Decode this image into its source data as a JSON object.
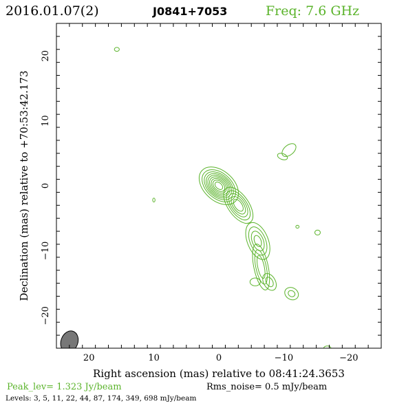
{
  "header": {
    "date": "2016.01.07(2)",
    "source": "J0841+7053",
    "freq": "Freq: 7.6 GHz"
  },
  "chart_data": {
    "type": "contour",
    "xlabel": "Right ascension (mas) relative to 08:41:24.3653",
    "ylabel": "Declination (mas) relative to +70:53:42.173",
    "xlim": [
      25,
      -25
    ],
    "ylim": [
      -25,
      25
    ],
    "xticks": [
      20,
      10,
      0,
      -10,
      -20
    ],
    "xtick_labels": [
      "20",
      "10",
      "0",
      "−10",
      "−20"
    ],
    "yticks": [
      20,
      10,
      0,
      -10,
      -20
    ],
    "ytick_labels": [
      "20",
      "10",
      "0",
      "−10",
      "−20"
    ],
    "contour_color": "#5ab32a",
    "beam": {
      "x": 23,
      "y": -24,
      "bmaj": 1.7,
      "bmin": 1.3,
      "pa_deg": 20
    },
    "components": [
      {
        "name": "core",
        "x": 0.0,
        "y": 0.0,
        "rings": [
          [
            3.5,
            2.3
          ],
          [
            3.0,
            1.95
          ],
          [
            2.6,
            1.7
          ],
          [
            2.25,
            1.5
          ],
          [
            1.95,
            1.3
          ],
          [
            1.65,
            1.1
          ],
          [
            1.35,
            0.9
          ],
          [
            1.05,
            0.7
          ],
          [
            0.7,
            0.45
          ]
        ],
        "angle_deg": 42
      },
      {
        "name": "inner-jet",
        "x": -3.0,
        "y": -3.0,
        "rings": [
          [
            3.2,
            1.6
          ],
          [
            2.6,
            1.3
          ],
          [
            2.05,
            1.05
          ],
          [
            1.55,
            0.8
          ],
          [
            1.05,
            0.55
          ]
        ],
        "angle_deg": 55
      },
      {
        "name": "knot-1",
        "x": -6.0,
        "y": -8.5,
        "rings": [
          [
            3.0,
            1.6
          ],
          [
            2.3,
            1.2
          ],
          [
            1.6,
            0.85
          ],
          [
            0.9,
            0.5
          ]
        ],
        "angle_deg": 68
      },
      {
        "name": "knot-2",
        "x": -6.5,
        "y": -12.5,
        "rings": [
          [
            3.6,
            1.1
          ],
          [
            2.7,
            0.8
          ],
          [
            1.8,
            0.5
          ]
        ],
        "angle_deg": 78
      },
      {
        "name": "knot-3",
        "x": -7.8,
        "y": -14.8,
        "rings": [
          [
            1.4,
            0.9
          ],
          [
            0.8,
            0.5
          ]
        ],
        "angle_deg": 60
      },
      {
        "name": "knot-4",
        "x": -5.6,
        "y": -14.8,
        "rings": [
          [
            0.8,
            0.6
          ]
        ],
        "angle_deg": 0
      },
      {
        "name": "knot-5",
        "x": -11.2,
        "y": -16.6,
        "rings": [
          [
            1.1,
            0.9
          ],
          [
            0.55,
            0.45
          ]
        ],
        "angle_deg": 30
      },
      {
        "name": "north-blob",
        "x": -10.8,
        "y": 5.5,
        "rings": [
          [
            1.25,
            0.75
          ]
        ],
        "angle_deg": -40
      },
      {
        "name": "north-tail",
        "x": -9.8,
        "y": 4.5,
        "rings": [
          [
            0.8,
            0.45
          ]
        ],
        "angle_deg": 20
      },
      {
        "name": "blob-a",
        "x": 15.7,
        "y": 21.0,
        "rings": [
          [
            0.38,
            0.3
          ]
        ],
        "angle_deg": 0
      },
      {
        "name": "blob-b",
        "x": 10.0,
        "y": -2.2,
        "rings": [
          [
            0.18,
            0.3
          ]
        ],
        "angle_deg": 0
      },
      {
        "name": "blob-c",
        "x": -12.1,
        "y": -6.3,
        "rings": [
          [
            0.25,
            0.22
          ]
        ],
        "angle_deg": 0
      },
      {
        "name": "blob-d",
        "x": -15.2,
        "y": -7.2,
        "rings": [
          [
            0.42,
            0.38
          ]
        ],
        "angle_deg": 0
      },
      {
        "name": "blob-e",
        "x": -16.7,
        "y": -25.0,
        "rings": [
          [
            0.55,
            0.35
          ]
        ],
        "angle_deg": 0
      }
    ]
  },
  "footer": {
    "peak": "Peak_lev=  1.323 Jy/beam",
    "rms": "Rms_noise=  0.5 mJy/beam",
    "levels": "Levels:   3,   5,  11,  22,  44,  87, 174, 349, 698 mJy/beam"
  }
}
